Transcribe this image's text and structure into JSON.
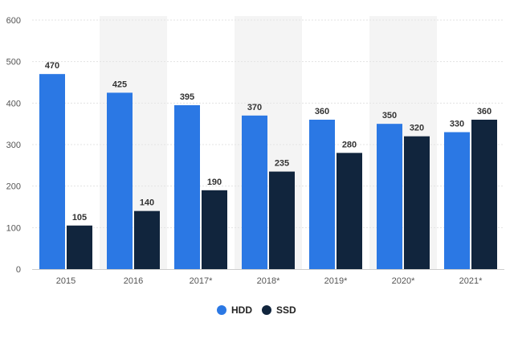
{
  "chart_data": {
    "type": "bar",
    "categories": [
      "2015",
      "2016",
      "2017*",
      "2018*",
      "2019*",
      "2020*",
      "2021*"
    ],
    "series": [
      {
        "name": "HDD",
        "values": [
          470,
          425,
          395,
          370,
          360,
          350,
          330
        ]
      },
      {
        "name": "SSD",
        "values": [
          105,
          140,
          190,
          235,
          280,
          320,
          360
        ]
      }
    ],
    "ylim": [
      0,
      600
    ],
    "yticks": [
      0,
      100,
      200,
      300,
      400,
      500,
      600
    ],
    "grid": true,
    "legend_position": "bottom-center",
    "colors": {
      "HDD": "#2b78e4",
      "SSD": "#11253d"
    },
    "alternating_band_color": "#f4f4f4"
  }
}
